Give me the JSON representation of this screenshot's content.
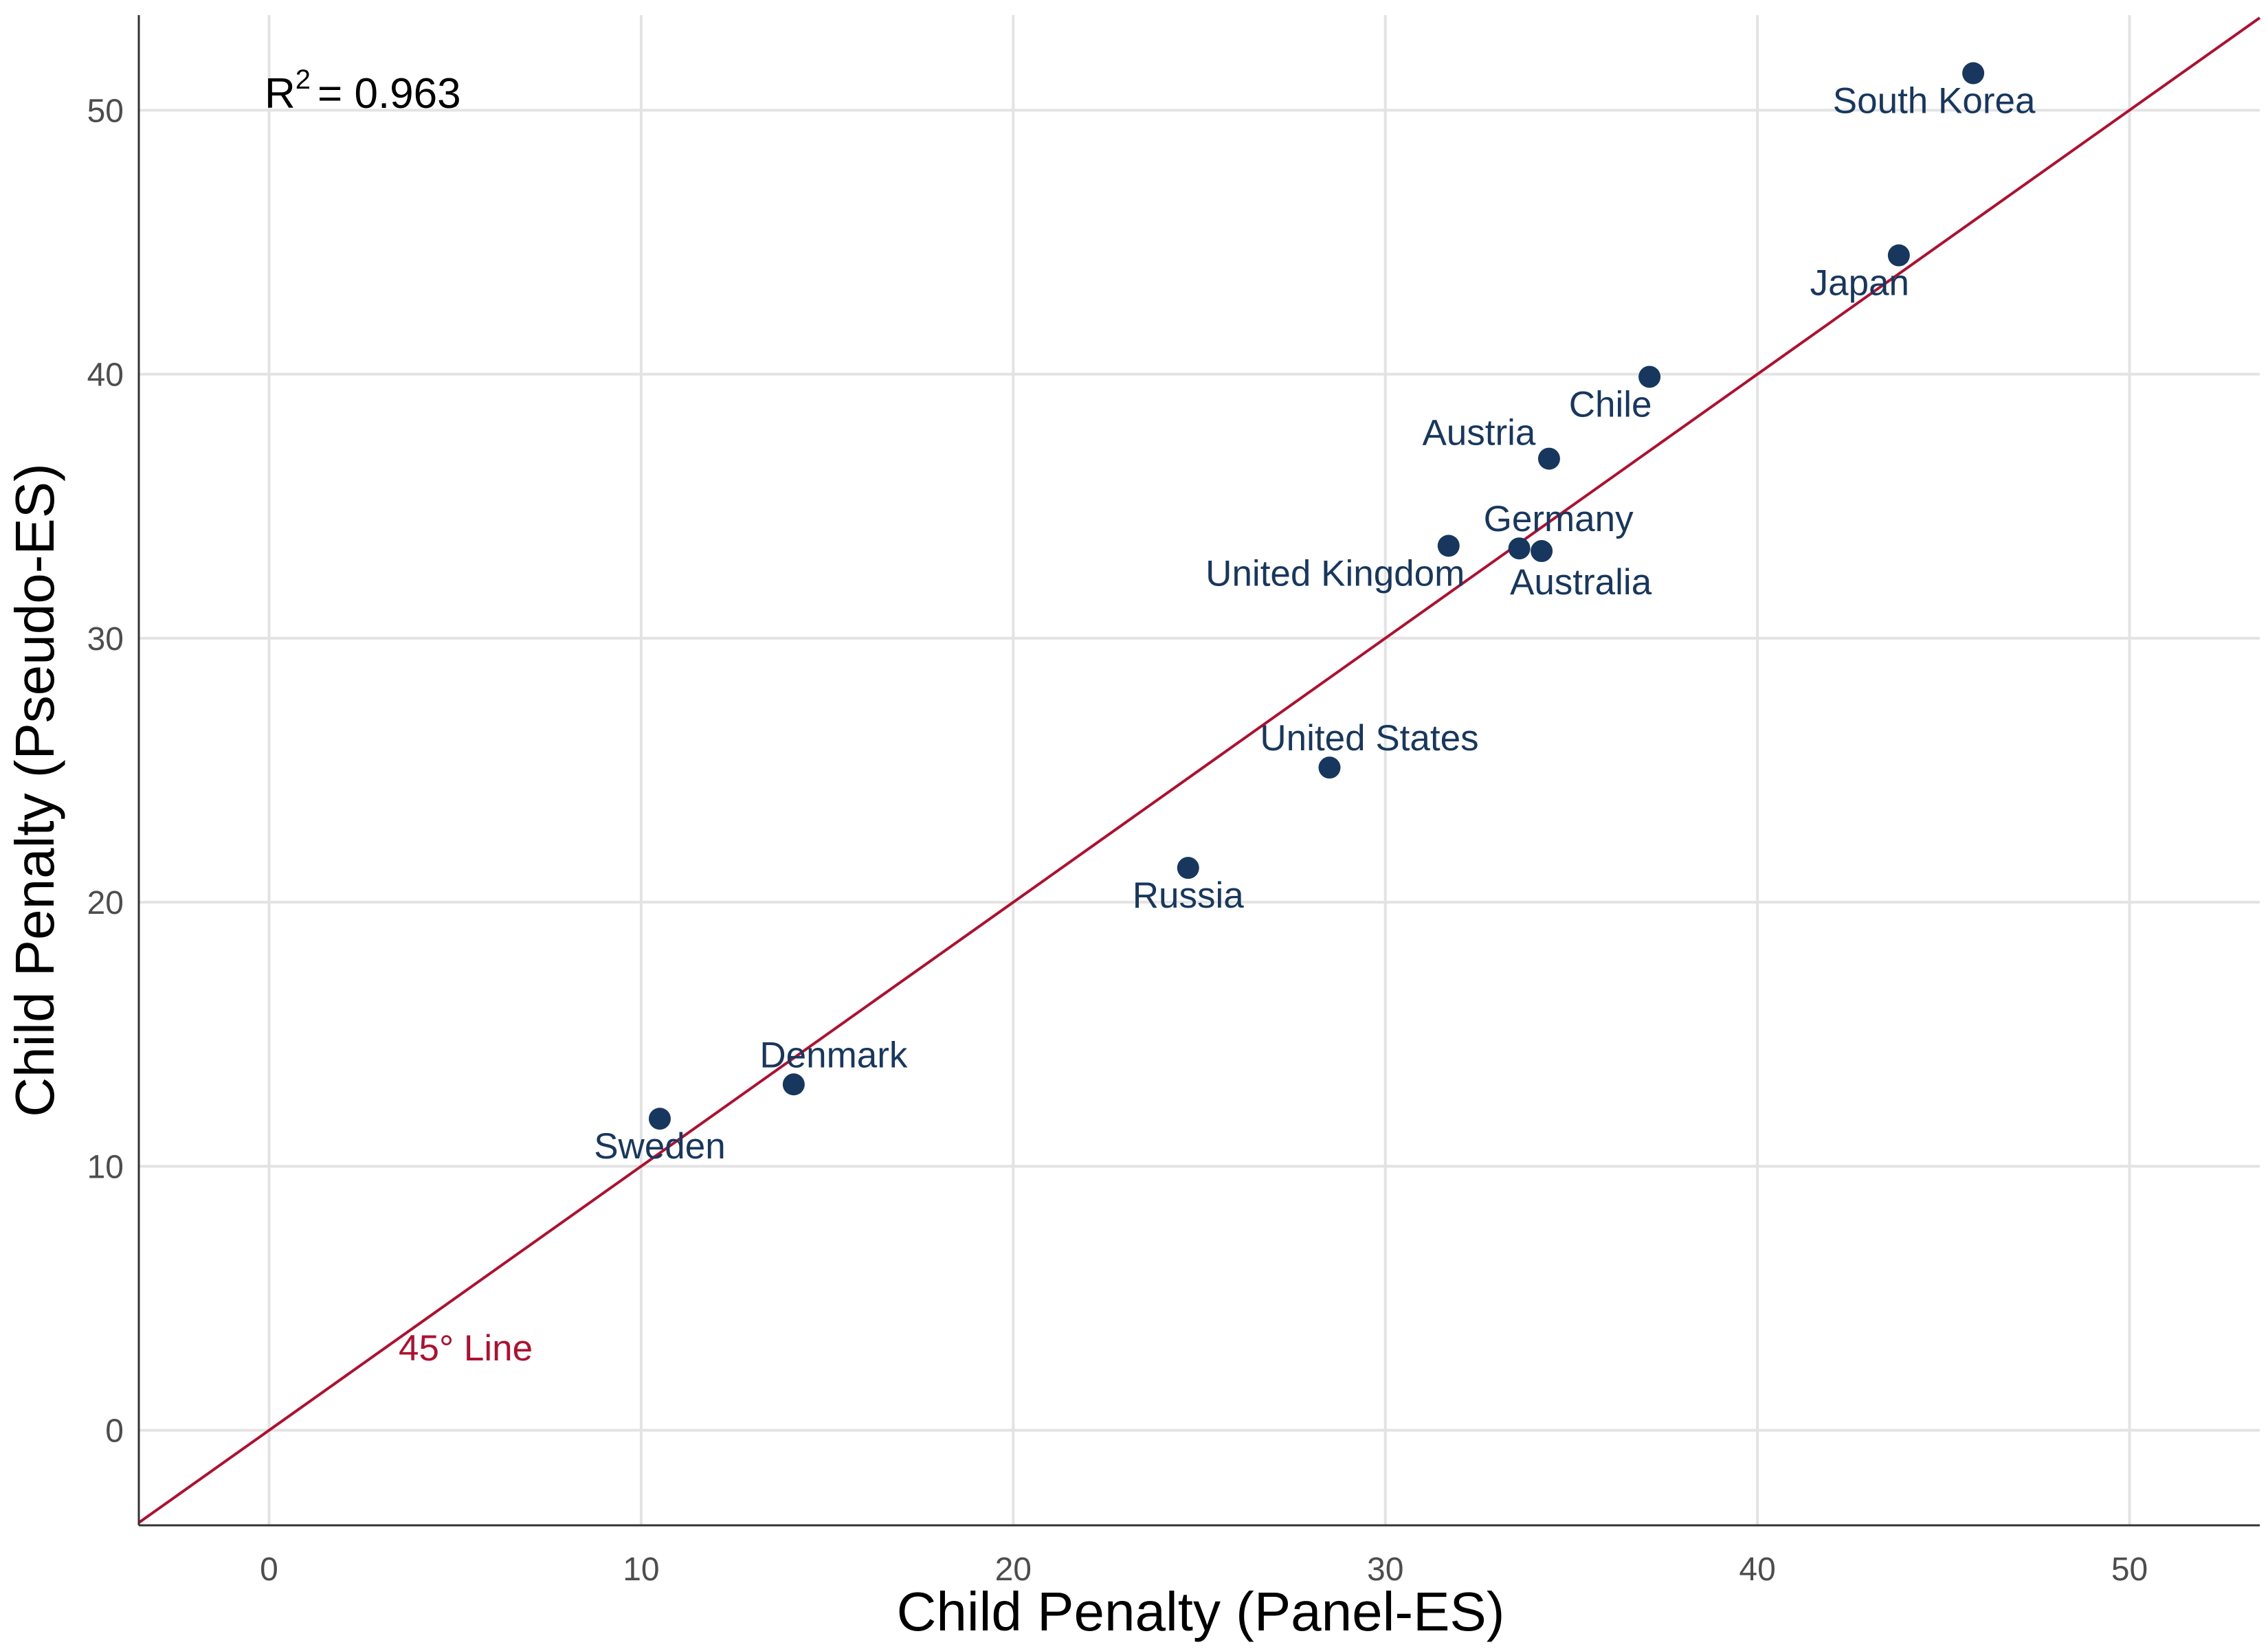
{
  "chart_data": {
    "type": "scatter",
    "xlabel": "Child Penalty (Panel-ES)",
    "ylabel": "Child Penalty (Pseudo-ES)",
    "xlim": [
      -3.5,
      53.5
    ],
    "ylim": [
      -3.6,
      53.6
    ],
    "x_ticks": [
      0,
      10,
      20,
      30,
      40,
      50
    ],
    "y_ticks": [
      0,
      10,
      20,
      30,
      40,
      50
    ],
    "grid": true,
    "point_color": "#17375e",
    "line_color": "#b01030",
    "points": [
      {
        "label": "Sweden",
        "x": 10.5,
        "y": 11.8
      },
      {
        "label": "Denmark",
        "x": 14.1,
        "y": 13.1
      },
      {
        "label": "Russia",
        "x": 24.7,
        "y": 21.3
      },
      {
        "label": "United States",
        "x": 28.5,
        "y": 25.1
      },
      {
        "label": "United Kingdom",
        "x": 31.7,
        "y": 33.5
      },
      {
        "label": "Germany",
        "x": 33.6,
        "y": 33.4
      },
      {
        "label": "Australia",
        "x": 34.2,
        "y": 33.3
      },
      {
        "label": "Austria",
        "x": 34.4,
        "y": 36.8
      },
      {
        "label": "Chile",
        "x": 37.1,
        "y": 39.9
      },
      {
        "label": "Japan",
        "x": 43.8,
        "y": 44.5
      },
      {
        "label": "South Korea",
        "x": 45.8,
        "y": 51.4
      }
    ],
    "reference_line": {
      "label": "45° Line",
      "slope": 1,
      "intercept": 0
    },
    "annotation": {
      "r_prefix": "R",
      "r_sup": "2",
      "r_value": "= 0.963"
    }
  }
}
